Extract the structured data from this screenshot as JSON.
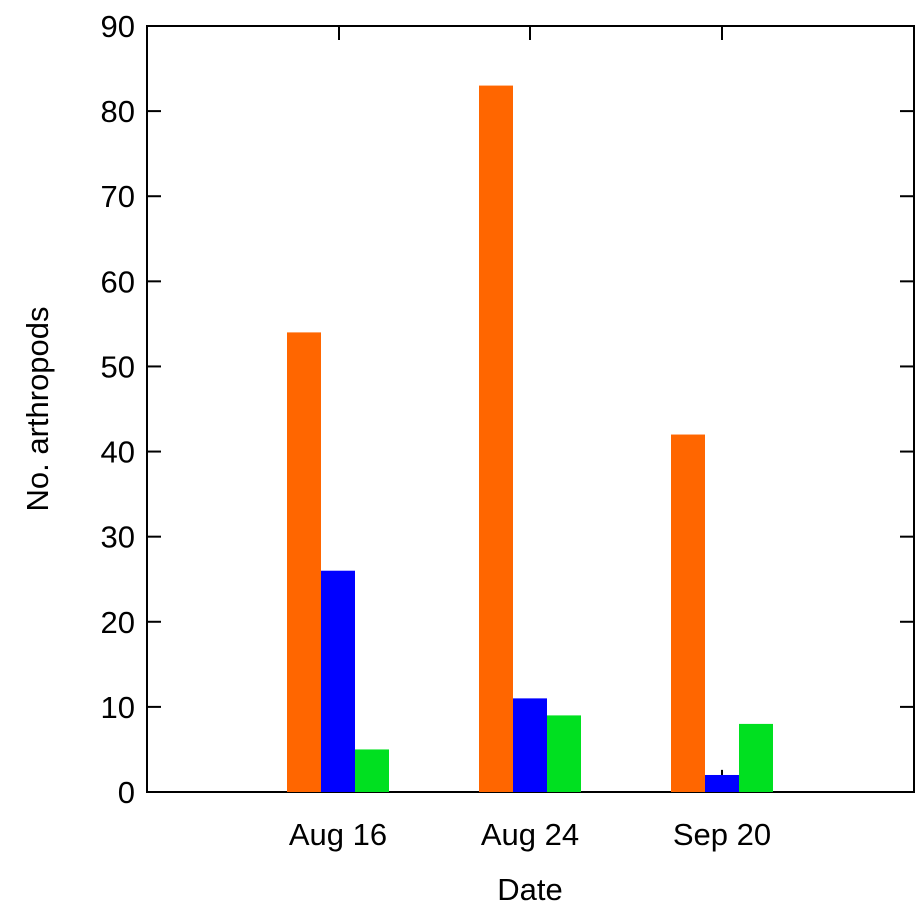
{
  "chart_data": {
    "type": "bar",
    "title": "",
    "xlabel": "Date",
    "ylabel": "No. arthropods",
    "categories": [
      "Aug 16",
      "Aug 24",
      "Sep 20"
    ],
    "series": [
      {
        "color": "#ff6600",
        "values": [
          54,
          83,
          42
        ]
      },
      {
        "color": "#0000ff",
        "values": [
          26,
          11,
          2
        ]
      },
      {
        "color": "#00e020",
        "values": [
          5,
          9,
          8
        ]
      }
    ],
    "ylim": [
      0,
      90
    ],
    "yticks": [
      0,
      10,
      20,
      30,
      40,
      50,
      60,
      70,
      80,
      90
    ],
    "grid": false,
    "error_bars": [
      {
        "category": "Sep 20",
        "series_index": 1,
        "upper": 2.6
      }
    ]
  }
}
